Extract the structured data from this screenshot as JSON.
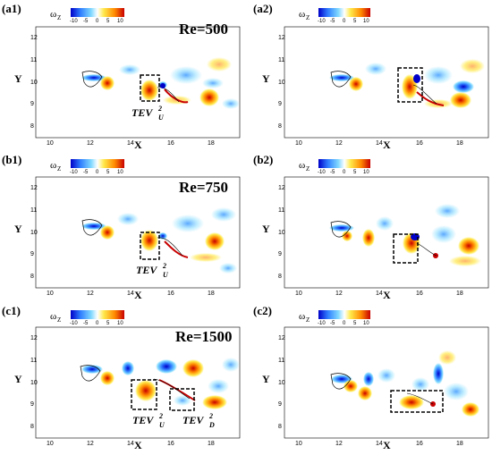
{
  "figure": {
    "colorbar": {
      "symbol": "ω",
      "subscript": "Z",
      "ticks": [
        "-10",
        "-5",
        "0",
        "5",
        "10"
      ],
      "colors": [
        "#0000c8",
        "#2f7dff",
        "#7fd8ff",
        "#ffffff",
        "#ffe84a",
        "#ff8a00",
        "#c80000"
      ]
    },
    "panels": [
      {
        "tag": "(a1)",
        "re": "Re=500",
        "tev": [
          {
            "base": "TEV",
            "sup": "2",
            "sub": "U"
          }
        ]
      },
      {
        "tag": "(a2)",
        "re": "",
        "tev": []
      },
      {
        "tag": "(b1)",
        "re": "Re=750",
        "tev": [
          {
            "base": "TEV",
            "sup": "2",
            "sub": "U"
          }
        ]
      },
      {
        "tag": "(b2)",
        "re": "",
        "tev": []
      },
      {
        "tag": "(c1)",
        "re": "Re=1500",
        "tev": [
          {
            "base": "TEV",
            "sup": "2",
            "sub": "U"
          },
          {
            "base": "TEV",
            "sup": "2",
            "sub": "D"
          }
        ]
      },
      {
        "tag": "(c2)",
        "re": "",
        "tev": []
      }
    ],
    "axes": {
      "xlabel": "X",
      "ylabel": "Y",
      "xticks": [
        "10",
        "12",
        "14",
        "16",
        "18"
      ],
      "yticks": [
        "8",
        "9",
        "10",
        "11",
        "12"
      ]
    }
  }
}
